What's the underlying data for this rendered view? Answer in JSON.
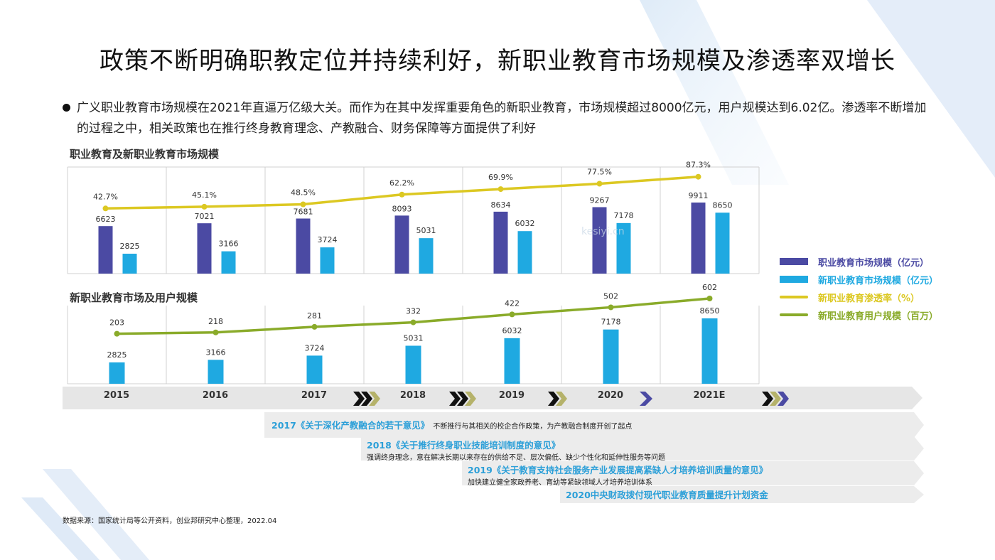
{
  "title": "政策不断明确职教定位并持续利好，新职业教育市场规模及渗透率双增长",
  "bullet": "广义职业教育市场规模在2021年直逼万亿级大关。而作为在其中发挥重要角色的新职业教育，市场规模超过8000亿元，用户规模达到6.02亿。渗透率不断增加的过程之中，相关政策也在推行终身教育理念、产教融合、财务保障等方面提供了利好",
  "colors": {
    "vocational_bar": "#4b4aa3",
    "new_vocational_bar": "#1fa9e1",
    "penetration_line": "#dcc822",
    "users_line": "#8aab2a",
    "policy_title": "#2b9fd8"
  },
  "chart_data": [
    {
      "type": "bar",
      "title": "职业教育及新职业教育市场规模",
      "categories": [
        "2015",
        "2016",
        "2017",
        "2018",
        "2019",
        "2020",
        "2021E"
      ],
      "series": [
        {
          "name": "职业教育市场规模（亿元）",
          "kind": "bar",
          "values": [
            6623,
            7021,
            7681,
            8093,
            8634,
            9267,
            9911
          ]
        },
        {
          "name": "新职业教育市场规模（亿元）",
          "kind": "bar",
          "values": [
            2825,
            3166,
            3724,
            5031,
            6032,
            7178,
            8650
          ]
        },
        {
          "name": "新职业教育渗透率（%）",
          "kind": "line",
          "values": [
            42.7,
            45.1,
            48.5,
            62.2,
            69.9,
            77.5,
            87.3
          ],
          "labels": [
            "42.7%",
            "45.1%",
            "48.5%",
            "62.2%",
            "69.9%",
            "77.5%",
            "87.3%"
          ]
        }
      ]
    },
    {
      "type": "bar",
      "title": "新职业教育市场及用户规模",
      "categories": [
        "2015",
        "2016",
        "2017",
        "2018",
        "2019",
        "2020",
        "2021E"
      ],
      "series": [
        {
          "name": "新职业教育市场规模（亿元）",
          "kind": "bar",
          "values": [
            2825,
            3166,
            3724,
            5031,
            6032,
            7178,
            8650
          ]
        },
        {
          "name": "新职业教育用户规模（百万）",
          "kind": "line",
          "values": [
            203,
            218,
            281,
            332,
            422,
            502,
            602
          ]
        }
      ]
    }
  ],
  "legend": [
    {
      "label": "职业教育市场规模（亿元）",
      "kind": "bar",
      "color": "#4b4aa3"
    },
    {
      "label": "新职业教育市场规模（亿元）",
      "kind": "bar",
      "color": "#1fa9e1"
    },
    {
      "label": "新职业教育渗透率（%）",
      "kind": "line",
      "color": "#dcc822"
    },
    {
      "label": "新职业教育用户规模（百万）",
      "kind": "line",
      "color": "#8aab2a"
    }
  ],
  "policies": [
    {
      "title": "2017《关于深化产教融合的若干意见》",
      "desc": "不断推行与其相关的校企合作政策，为产教融合制度开创了起点"
    },
    {
      "title": "2018《关于推行终身职业技能培训制度的意见》",
      "desc": "强调终身理念，意在解决长期以来存在的供给不足、层次偏低、缺少个性化和延伸性服务等问题"
    },
    {
      "title": "2019《关于教育支持社会服务产业发展提高紧缺人才培养培训质量的意见》",
      "desc": "加快建立健全家政养老、育幼等紧缺领域人才培养培训体系"
    },
    {
      "title": "2020中央财政拨付现代职业教育质量提升计划资金",
      "desc": ""
    }
  ],
  "source": "数据来源：国家统计局等公开资料，创业邦研究中心整理，2022.04",
  "watermark": "kesiyi.cn"
}
